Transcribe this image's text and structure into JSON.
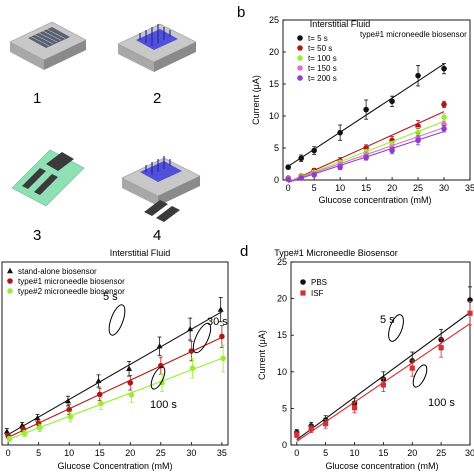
{
  "panels": {
    "a_steps": [
      "1",
      "2",
      "3",
      "4"
    ],
    "b_letter": "b",
    "d_letter": "d"
  },
  "colors": {
    "black": "#111111",
    "darkred": "#b01818",
    "green": "#99ee33",
    "purple": "#8a3fd0",
    "pink": "#e070c8",
    "red": "#d83030",
    "darkbrown": "#3a1a1a",
    "electrode": "#3a3a3a",
    "needle": "#5050d8",
    "substrate": "#c8c8c8",
    "paper": "#8fe0b4"
  },
  "chart_data": [
    {
      "id": "b",
      "type": "scatter",
      "title": "Interstitial Fluid",
      "annotation": "type#1 microneedle biosensor",
      "xlabel": "Glucose concentration (mM)",
      "ylabel": "Current (μA)",
      "xlim": [
        -1,
        35
      ],
      "ylim": [
        0,
        25
      ],
      "xticks": [
        0,
        5,
        10,
        15,
        20,
        25,
        30,
        35
      ],
      "yticks": [
        0,
        5,
        10,
        15,
        20,
        25
      ],
      "legend_position": "top-left",
      "x": [
        0,
        2.5,
        5,
        10,
        15,
        20,
        25,
        30
      ],
      "series": [
        {
          "name": "t= 5 s",
          "color": "#111111",
          "values": [
            2.0,
            3.4,
            4.6,
            7.4,
            11.0,
            12.3,
            16.3,
            17.4
          ],
          "errors": [
            0.3,
            0.5,
            0.6,
            1.2,
            1.5,
            0.8,
            1.6,
            0.8
          ]
        },
        {
          "name": "t= 50 s",
          "color": "#b01818",
          "values": [
            0.3,
            0.6,
            1.5,
            3.0,
            5.0,
            6.2,
            8.4,
            11.8
          ],
          "errors": [
            0.2,
            0.3,
            0.3,
            0.5,
            0.5,
            0.6,
            0.9,
            0.5
          ]
        },
        {
          "name": "t= 100 s",
          "color": "#99ee33",
          "values": [
            0.2,
            0.5,
            1.2,
            2.7,
            4.3,
            5.5,
            7.4,
            9.8
          ],
          "errors": [
            0.2,
            0.3,
            0.3,
            0.4,
            0.5,
            0.5,
            0.8,
            0.6
          ]
        },
        {
          "name": "t= 150 s",
          "color": "#e070c8",
          "values": [
            0.2,
            0.4,
            1.0,
            2.4,
            3.9,
            5.0,
            6.6,
            8.7
          ],
          "errors": [
            0.2,
            0.3,
            0.3,
            0.4,
            0.5,
            0.5,
            0.7,
            0.5
          ]
        },
        {
          "name": "t= 200 s",
          "color": "#8a3fd0",
          "values": [
            0.1,
            0.3,
            0.8,
            2.0,
            3.5,
            4.6,
            6.2,
            8.0
          ],
          "errors": [
            0.2,
            0.3,
            0.3,
            0.4,
            0.4,
            0.5,
            0.7,
            0.5
          ]
        }
      ]
    },
    {
      "id": "c",
      "type": "scatter",
      "title": "Interstitial Fluid",
      "xlabel": "Glucose Concentration (mM)",
      "ylabel": "",
      "xlim": [
        -1,
        36
      ],
      "ylim": [
        0,
        30
      ],
      "xticks": [
        0,
        5,
        10,
        15,
        20,
        25,
        30,
        35
      ],
      "legend_position": "top-left",
      "annotations": [
        "5 s",
        "30 s",
        "100 s"
      ],
      "x": [
        0,
        2.5,
        5,
        10,
        15,
        20,
        25,
        30,
        35
      ],
      "series": [
        {
          "name": "stand-alone biosensor",
          "color": "#111111",
          "marker": "triangle",
          "values": [
            2.2,
            3.2,
            4.4,
            7.2,
            10.5,
            12.5,
            16.2,
            19.0,
            22.2
          ],
          "errors": [
            0.5,
            0.5,
            0.6,
            0.8,
            1.0,
            1.2,
            1.5,
            1.8,
            2.0
          ]
        },
        {
          "name": "type#1 microneedle biosensor",
          "color": "#b01818",
          "marker": "circle",
          "values": [
            1.5,
            2.5,
            3.5,
            5.8,
            8.3,
            10.2,
            13.0,
            15.4,
            17.8
          ],
          "errors": [
            0.4,
            0.5,
            0.6,
            0.8,
            1.0,
            1.2,
            1.4,
            1.6,
            1.8
          ]
        },
        {
          "name": "type#2 microneedle biosensor",
          "color": "#99ee33",
          "marker": "circle",
          "values": [
            1.0,
            1.9,
            2.8,
            4.6,
            6.8,
            8.2,
            10.2,
            12.6,
            14.2
          ],
          "errors": [
            0.4,
            0.5,
            0.6,
            0.8,
            1.0,
            1.2,
            1.4,
            1.6,
            2.2
          ]
        }
      ]
    },
    {
      "id": "d",
      "type": "scatter",
      "title": "Type#1 Microneedle Biosensor",
      "xlabel": "Glucose concentration (mM)",
      "ylabel": "Current (μA)",
      "xlim": [
        -1,
        30
      ],
      "ylim": [
        0,
        25
      ],
      "xticks": [
        0,
        5,
        10,
        15,
        20,
        25,
        30
      ],
      "yticks": [
        0,
        5,
        10,
        15,
        20,
        25
      ],
      "legend_position": "top-left",
      "annotations": [
        "5 s",
        "100 s"
      ],
      "x": [
        0,
        2.5,
        5,
        10,
        15,
        20,
        25,
        30
      ],
      "series": [
        {
          "name": "PBS",
          "color": "#111111",
          "marker": "circle",
          "values": [
            1.7,
            2.6,
            3.4,
            5.7,
            9.0,
            11.5,
            14.4,
            19.8
          ],
          "errors": [
            0.4,
            0.5,
            0.6,
            0.7,
            1.0,
            1.2,
            1.4,
            1.8
          ]
        },
        {
          "name": "ISF",
          "color": "#d83030",
          "marker": "square",
          "values": [
            1.4,
            2.2,
            2.9,
            5.1,
            8.2,
            10.5,
            13.3,
            18.0
          ],
          "errors": [
            0.4,
            0.5,
            0.6,
            0.7,
            0.9,
            1.1,
            1.3,
            1.6
          ]
        }
      ]
    }
  ]
}
